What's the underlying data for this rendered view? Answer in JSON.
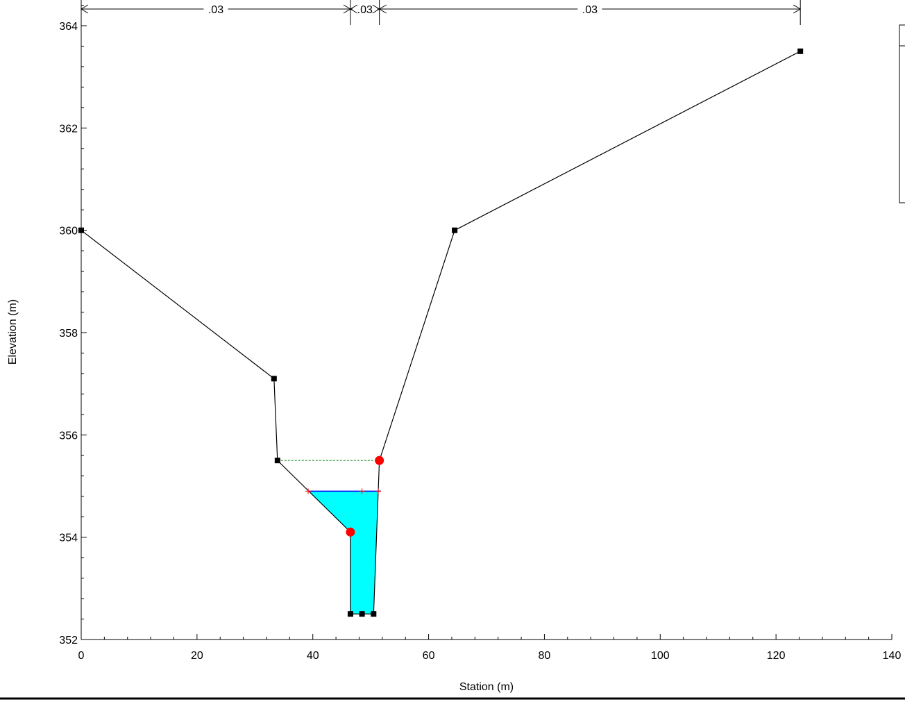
{
  "chart_data": {
    "type": "line",
    "title": "",
    "xlabel": "Station (m)",
    "ylabel": "Elevation (m)",
    "xlim": [
      0,
      140
    ],
    "ylim": [
      352,
      364.5
    ],
    "x_ticks": [
      0,
      20,
      40,
      60,
      80,
      100,
      120,
      140
    ],
    "y_ticks": [
      352,
      354,
      356,
      358,
      360,
      362,
      364
    ],
    "x_tick_labels": [
      "0",
      "20",
      "40",
      "60",
      "80",
      "100",
      "120",
      "140"
    ],
    "y_tick_labels": [
      "352",
      "354",
      "356",
      "358",
      "360",
      "362",
      "364"
    ],
    "grid": false,
    "ground": {
      "x": [
        0,
        33.3,
        33.9,
        46.5,
        46.5,
        48.5,
        50.5,
        51.5,
        64.5,
        124.2
      ],
      "y": [
        360.0,
        357.1,
        355.5,
        354.1,
        352.5,
        352.5,
        352.5,
        355.5,
        360.0,
        363.5
      ]
    },
    "water_surface": {
      "x_left": 39.2,
      "x_right": 51.3,
      "elevation": 354.9,
      "fill_color": "#00ffff",
      "line_color": "#0000ff",
      "marker_x": [
        39.2,
        48.5,
        51.3
      ],
      "marker_color": "#ff0000"
    },
    "bank_stations": {
      "x": [
        46.5,
        51.5
      ],
      "y": [
        354.1,
        355.5
      ],
      "color": "#ff0000"
    },
    "levee_line": {
      "x": [
        33.9,
        51.5
      ],
      "elevation": 355.5,
      "color": "#008000"
    },
    "mannings_n": {
      "breaks": [
        0,
        46.5,
        51.5,
        124.2
      ],
      "values": [
        ".03",
        ".03",
        ".03"
      ]
    }
  }
}
